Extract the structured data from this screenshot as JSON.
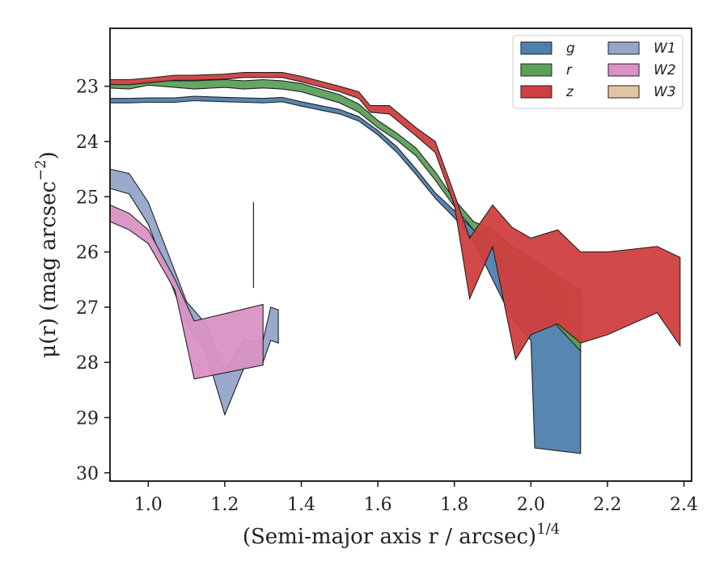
{
  "chart_data": {
    "type": "area",
    "xlabel": "(Semi-major axis r / arcsec)",
    "xlabel_sup": "1/4",
    "ylabel": "μ(r) (mag arcsec",
    "ylabel_sup": "−2",
    "ylabel_end": ")",
    "xlim": [
      0.9,
      2.42
    ],
    "ylim": [
      30.15,
      21.95
    ],
    "y_inverted": true,
    "xticks": [
      1.0,
      1.2,
      1.4,
      1.6,
      1.8,
      2.0,
      2.2,
      2.4
    ],
    "xtick_labels": [
      "1.0",
      "1.2",
      "1.4",
      "1.6",
      "1.8",
      "2.0",
      "2.2",
      "2.4"
    ],
    "yticks": [
      23,
      24,
      25,
      26,
      27,
      28,
      29,
      30
    ],
    "ytick_labels": [
      "23",
      "24",
      "25",
      "26",
      "27",
      "28",
      "29",
      "30"
    ],
    "legend": {
      "position": "top-right",
      "columns": 2,
      "entries": [
        "g",
        "r",
        "z",
        "W1",
        "W2",
        "W3"
      ]
    },
    "grid": false,
    "vline": {
      "x": 1.275,
      "y_top": 25.1,
      "y_bottom": 26.65
    },
    "series": [
      {
        "name": "g",
        "color": "#4e7fad",
        "upper": [
          [
            0.9,
            23.22
          ],
          [
            0.95,
            23.22
          ],
          [
            1.0,
            23.21
          ],
          [
            1.07,
            23.21
          ],
          [
            1.12,
            23.18
          ],
          [
            1.2,
            23.2
          ],
          [
            1.25,
            23.21
          ],
          [
            1.3,
            23.22
          ],
          [
            1.35,
            23.2
          ],
          [
            1.4,
            23.28
          ],
          [
            1.5,
            23.42
          ],
          [
            1.55,
            23.55
          ],
          [
            1.6,
            23.8
          ],
          [
            1.65,
            24.1
          ],
          [
            1.7,
            24.5
          ],
          [
            1.75,
            24.93
          ],
          [
            1.8,
            25.25
          ],
          [
            1.85,
            25.6
          ],
          [
            1.9,
            25.8
          ],
          [
            1.95,
            26.0
          ],
          [
            2.0,
            26.25
          ],
          [
            2.07,
            26.45
          ],
          [
            2.13,
            27.8
          ]
        ],
        "lower": [
          [
            0.9,
            23.3
          ],
          [
            0.95,
            23.3
          ],
          [
            1.0,
            23.29
          ],
          [
            1.07,
            23.29
          ],
          [
            1.12,
            23.26
          ],
          [
            1.2,
            23.28
          ],
          [
            1.25,
            23.29
          ],
          [
            1.3,
            23.3
          ],
          [
            1.35,
            23.28
          ],
          [
            1.4,
            23.36
          ],
          [
            1.5,
            23.5
          ],
          [
            1.55,
            23.63
          ],
          [
            1.6,
            23.88
          ],
          [
            1.65,
            24.2
          ],
          [
            1.7,
            24.6
          ],
          [
            1.75,
            25.03
          ],
          [
            1.8,
            25.38
          ],
          [
            1.85,
            25.8
          ],
          [
            1.9,
            26.5
          ],
          [
            1.95,
            27.2
          ],
          [
            2.0,
            27.6
          ],
          [
            2.01,
            29.55
          ],
          [
            2.07,
            29.6
          ],
          [
            2.13,
            29.65
          ]
        ]
      },
      {
        "name": "r",
        "color": "#5ba05b",
        "upper": [
          [
            0.9,
            22.95
          ],
          [
            0.95,
            22.97
          ],
          [
            1.0,
            22.9
          ],
          [
            1.07,
            22.9
          ],
          [
            1.12,
            22.9
          ],
          [
            1.2,
            22.88
          ],
          [
            1.25,
            22.9
          ],
          [
            1.3,
            22.88
          ],
          [
            1.35,
            22.9
          ],
          [
            1.4,
            22.95
          ],
          [
            1.5,
            23.15
          ],
          [
            1.55,
            23.32
          ],
          [
            1.6,
            23.62
          ],
          [
            1.65,
            23.85
          ],
          [
            1.7,
            24.12
          ],
          [
            1.75,
            24.55
          ],
          [
            1.8,
            25.05
          ],
          [
            1.85,
            25.45
          ],
          [
            1.9,
            25.6
          ],
          [
            1.95,
            25.9
          ],
          [
            2.0,
            26.1
          ],
          [
            2.07,
            26.45
          ],
          [
            2.13,
            26.7
          ]
        ],
        "lower": [
          [
            0.9,
            23.03
          ],
          [
            0.95,
            23.05
          ],
          [
            1.0,
            22.98
          ],
          [
            1.07,
            23.02
          ],
          [
            1.12,
            23.05
          ],
          [
            1.2,
            23.02
          ],
          [
            1.25,
            23.05
          ],
          [
            1.3,
            23.03
          ],
          [
            1.35,
            23.05
          ],
          [
            1.4,
            23.1
          ],
          [
            1.5,
            23.3
          ],
          [
            1.55,
            23.47
          ],
          [
            1.6,
            23.75
          ],
          [
            1.65,
            23.98
          ],
          [
            1.7,
            24.26
          ],
          [
            1.75,
            24.7
          ],
          [
            1.8,
            25.18
          ],
          [
            1.85,
            25.6
          ],
          [
            1.9,
            25.95
          ],
          [
            1.95,
            26.2
          ],
          [
            2.0,
            26.65
          ],
          [
            2.07,
            27.35
          ],
          [
            2.13,
            27.8
          ]
        ]
      },
      {
        "name": "z",
        "color": "#d03f3f",
        "upper": [
          [
            0.9,
            22.88
          ],
          [
            0.95,
            22.88
          ],
          [
            1.0,
            22.85
          ],
          [
            1.07,
            22.8
          ],
          [
            1.12,
            22.8
          ],
          [
            1.2,
            22.78
          ],
          [
            1.25,
            22.75
          ],
          [
            1.3,
            22.75
          ],
          [
            1.35,
            22.75
          ],
          [
            1.4,
            22.82
          ],
          [
            1.5,
            23.0
          ],
          [
            1.55,
            23.1
          ],
          [
            1.58,
            23.35
          ],
          [
            1.63,
            23.35
          ],
          [
            1.7,
            23.75
          ],
          [
            1.75,
            24.0
          ],
          [
            1.8,
            24.95
          ],
          [
            1.84,
            25.75
          ],
          [
            1.9,
            25.15
          ],
          [
            1.95,
            25.55
          ],
          [
            2.0,
            25.75
          ],
          [
            2.07,
            25.6
          ],
          [
            2.13,
            26.0
          ],
          [
            2.2,
            26.0
          ],
          [
            2.33,
            25.9
          ],
          [
            2.39,
            26.1
          ]
        ],
        "lower": [
          [
            0.9,
            22.97
          ],
          [
            0.95,
            22.97
          ],
          [
            1.0,
            22.94
          ],
          [
            1.07,
            22.89
          ],
          [
            1.12,
            22.89
          ],
          [
            1.2,
            22.87
          ],
          [
            1.25,
            22.84
          ],
          [
            1.3,
            22.84
          ],
          [
            1.35,
            22.84
          ],
          [
            1.4,
            22.92
          ],
          [
            1.5,
            23.1
          ],
          [
            1.55,
            23.22
          ],
          [
            1.58,
            23.47
          ],
          [
            1.63,
            23.5
          ],
          [
            1.7,
            23.9
          ],
          [
            1.75,
            24.2
          ],
          [
            1.8,
            25.15
          ],
          [
            1.84,
            26.85
          ],
          [
            1.9,
            25.9
          ],
          [
            1.96,
            27.95
          ],
          [
            2.0,
            27.5
          ],
          [
            2.07,
            27.3
          ],
          [
            2.13,
            27.65
          ],
          [
            2.2,
            27.5
          ],
          [
            2.33,
            27.1
          ],
          [
            2.39,
            27.7
          ]
        ]
      },
      {
        "name": "W1",
        "color": "#95a5c9",
        "upper": [
          [
            0.9,
            24.5
          ],
          [
            0.95,
            24.58
          ],
          [
            1.0,
            25.1
          ],
          [
            1.05,
            26.0
          ],
          [
            1.1,
            26.9
          ],
          [
            1.15,
            27.3
          ],
          [
            1.2,
            28.15
          ],
          [
            1.25,
            27.6
          ],
          [
            1.3,
            27.6
          ],
          [
            1.32,
            27.0
          ],
          [
            1.34,
            27.05
          ]
        ],
        "lower": [
          [
            0.9,
            24.85
          ],
          [
            0.95,
            24.95
          ],
          [
            1.0,
            25.5
          ],
          [
            1.05,
            26.4
          ],
          [
            1.1,
            27.3
          ],
          [
            1.15,
            27.8
          ],
          [
            1.2,
            28.95
          ],
          [
            1.25,
            28.1
          ],
          [
            1.3,
            28.0
          ],
          [
            1.32,
            27.6
          ],
          [
            1.34,
            27.65
          ]
        ]
      },
      {
        "name": "W2",
        "color": "#d992c4",
        "upper": [
          [
            0.9,
            25.15
          ],
          [
            0.95,
            25.3
          ],
          [
            1.0,
            25.6
          ],
          [
            1.07,
            26.5
          ],
          [
            1.12,
            27.25
          ],
          [
            1.3,
            26.95
          ]
        ],
        "lower": [
          [
            0.9,
            25.45
          ],
          [
            0.95,
            25.6
          ],
          [
            1.0,
            25.85
          ],
          [
            1.07,
            26.7
          ],
          [
            1.12,
            28.3
          ],
          [
            1.3,
            28.05
          ]
        ]
      },
      {
        "name": "W3",
        "color": "#e0c5a1",
        "upper": [],
        "lower": []
      }
    ]
  }
}
